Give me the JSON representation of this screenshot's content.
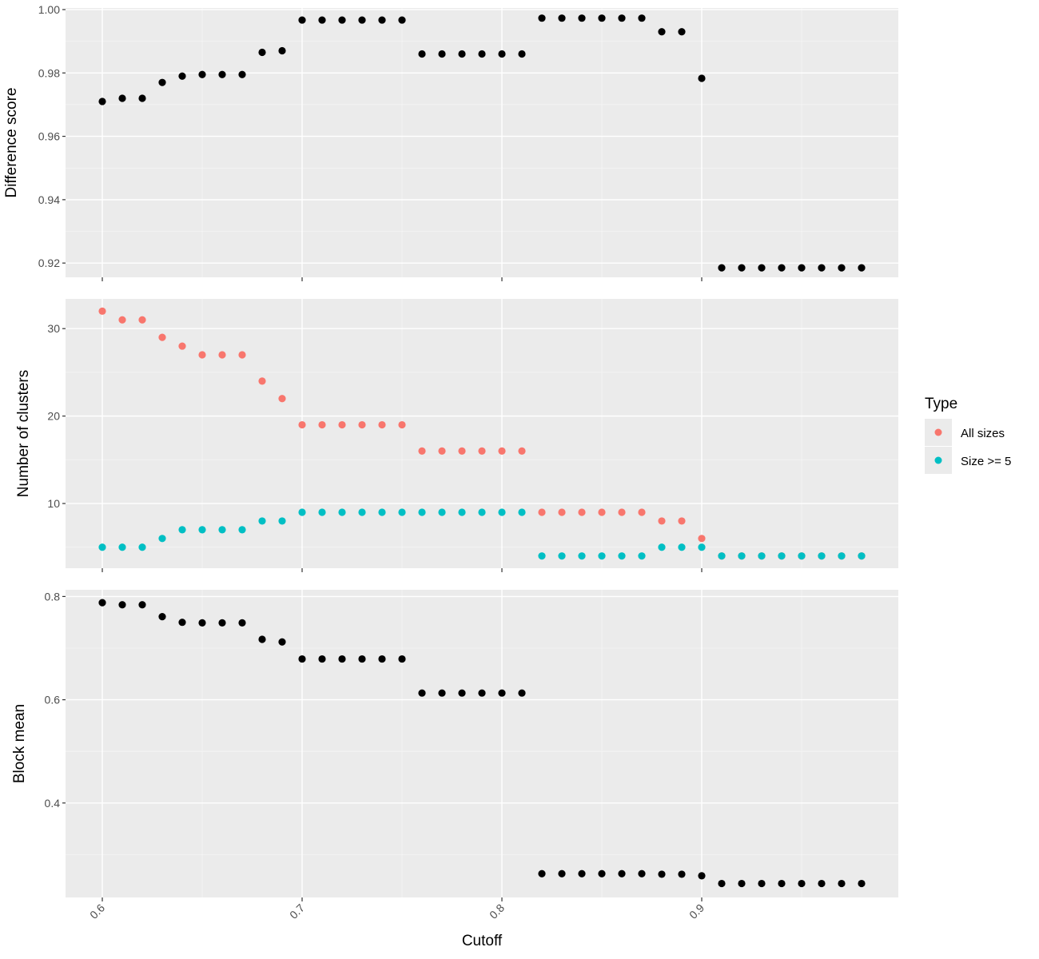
{
  "chart_data": [
    {
      "type": "scatter",
      "ylabel": "Difference score",
      "ylim": [
        0.9155,
        1.0005
      ],
      "yticks": [
        0.92,
        0.94,
        0.96,
        0.98,
        1.0
      ],
      "ytick_labels": [
        "0.92",
        "0.94",
        "0.96",
        "0.98",
        "1.00"
      ],
      "grid": true,
      "series": [
        {
          "color": "#000000",
          "x": [
            0.6,
            0.61,
            0.62,
            0.63,
            0.64,
            0.65,
            0.66,
            0.67,
            0.68,
            0.69,
            0.7,
            0.71,
            0.72,
            0.73,
            0.74,
            0.75,
            0.76,
            0.77,
            0.78,
            0.79,
            0.8,
            0.81,
            0.82,
            0.83,
            0.84,
            0.85,
            0.86,
            0.87,
            0.88,
            0.89,
            0.9,
            0.91,
            0.92,
            0.93,
            0.94,
            0.95,
            0.96,
            0.97,
            0.98
          ],
          "y": [
            0.971,
            0.972,
            0.972,
            0.977,
            0.979,
            0.9795,
            0.9795,
            0.9795,
            0.9865,
            0.987,
            0.9967,
            0.9967,
            0.9967,
            0.9967,
            0.9967,
            0.9967,
            0.986,
            0.986,
            0.986,
            0.986,
            0.986,
            0.986,
            0.9973,
            0.9973,
            0.9973,
            0.9973,
            0.9973,
            0.9973,
            0.993,
            0.993,
            0.9783,
            0.9185,
            0.9185,
            0.9185,
            0.9185,
            0.9185,
            0.9185,
            0.9185,
            0.9185
          ]
        }
      ]
    },
    {
      "type": "scatter",
      "ylabel": "Number of clusters",
      "ylim": [
        2.6,
        33.4
      ],
      "yticks": [
        10,
        20,
        30
      ],
      "ytick_labels": [
        "10",
        "20",
        "30"
      ],
      "grid": true,
      "legend": {
        "title": "Type",
        "position": "right"
      },
      "series": [
        {
          "name": "All sizes",
          "color": "#F8766D",
          "x": [
            0.6,
            0.61,
            0.62,
            0.63,
            0.64,
            0.65,
            0.66,
            0.67,
            0.68,
            0.69,
            0.7,
            0.71,
            0.72,
            0.73,
            0.74,
            0.75,
            0.76,
            0.77,
            0.78,
            0.79,
            0.8,
            0.81,
            0.82,
            0.83,
            0.84,
            0.85,
            0.86,
            0.87,
            0.88,
            0.89,
            0.9,
            0.91,
            0.92,
            0.93,
            0.94,
            0.95,
            0.96,
            0.97,
            0.98
          ],
          "y": [
            32,
            31,
            31,
            29,
            28,
            27,
            27,
            27,
            24,
            22,
            19,
            19,
            19,
            19,
            19,
            19,
            16,
            16,
            16,
            16,
            16,
            16,
            9,
            9,
            9,
            9,
            9,
            9,
            8,
            8,
            6,
            4,
            4,
            4,
            4,
            4,
            4,
            4,
            4
          ]
        },
        {
          "name": "Size >= 5",
          "color": "#00BFC4",
          "x": [
            0.6,
            0.61,
            0.62,
            0.63,
            0.64,
            0.65,
            0.66,
            0.67,
            0.68,
            0.69,
            0.7,
            0.71,
            0.72,
            0.73,
            0.74,
            0.75,
            0.76,
            0.77,
            0.78,
            0.79,
            0.8,
            0.81,
            0.82,
            0.83,
            0.84,
            0.85,
            0.86,
            0.87,
            0.88,
            0.89,
            0.9,
            0.91,
            0.92,
            0.93,
            0.94,
            0.95,
            0.96,
            0.97,
            0.98
          ],
          "y": [
            5,
            5,
            5,
            6,
            7,
            7,
            7,
            7,
            8,
            8,
            9,
            9,
            9,
            9,
            9,
            9,
            9,
            9,
            9,
            9,
            9,
            9,
            4,
            4,
            4,
            4,
            4,
            4,
            5,
            5,
            5,
            4,
            4,
            4,
            4,
            4,
            4,
            4,
            4
          ]
        }
      ]
    },
    {
      "type": "scatter",
      "ylabel": "Block mean",
      "xlabel": "Cutoff",
      "ylim": [
        0.217,
        0.813
      ],
      "yticks": [
        0.4,
        0.6,
        0.8
      ],
      "ytick_labels": [
        "0.4",
        "0.6",
        "0.8"
      ],
      "xlim": [
        0.5816,
        0.9984
      ],
      "xticks": [
        0.6,
        0.7,
        0.8,
        0.9
      ],
      "xtick_labels": [
        "0.6",
        "0.7",
        "0.8",
        "0.9"
      ],
      "grid": true,
      "series": [
        {
          "color": "#000000",
          "x": [
            0.6,
            0.61,
            0.62,
            0.63,
            0.64,
            0.65,
            0.66,
            0.67,
            0.68,
            0.69,
            0.7,
            0.71,
            0.72,
            0.73,
            0.74,
            0.75,
            0.76,
            0.77,
            0.78,
            0.79,
            0.8,
            0.81,
            0.82,
            0.83,
            0.84,
            0.85,
            0.86,
            0.87,
            0.88,
            0.89,
            0.9,
            0.91,
            0.92,
            0.93,
            0.94,
            0.95,
            0.96,
            0.97,
            0.98
          ],
          "y": [
            0.788,
            0.784,
            0.784,
            0.761,
            0.75,
            0.749,
            0.749,
            0.749,
            0.717,
            0.712,
            0.679,
            0.679,
            0.679,
            0.679,
            0.679,
            0.679,
            0.613,
            0.613,
            0.613,
            0.613,
            0.613,
            0.613,
            0.263,
            0.263,
            0.263,
            0.263,
            0.263,
            0.263,
            0.262,
            0.262,
            0.259,
            0.244,
            0.244,
            0.244,
            0.244,
            0.244,
            0.244,
            0.244,
            0.244
          ]
        }
      ]
    }
  ]
}
